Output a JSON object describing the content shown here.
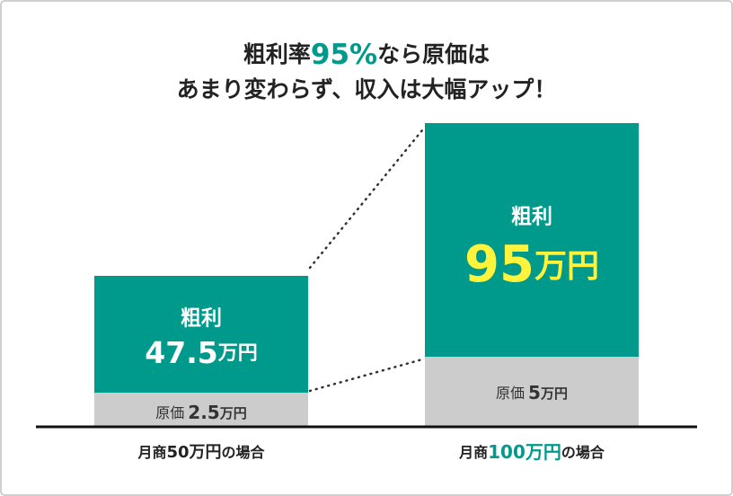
{
  "title": {
    "line1": [
      "粗利率",
      "95%",
      "なら原価は"
    ],
    "line2": "あまり変わらず、収入は大幅アップ！"
  },
  "cases": [
    {
      "label": [
        "月商",
        "50万円",
        "の場合"
      ],
      "profit": {
        "label": "粗利",
        "amount": "47.5",
        "unit": "万円"
      },
      "cost": {
        "label": "原価",
        "amount": "2.5",
        "unit": "万円"
      }
    },
    {
      "label": [
        "月商",
        "100万円",
        "の場合"
      ],
      "profit": {
        "label": "粗利",
        "amount": "95",
        "unit": "万円"
      },
      "cost": {
        "label": "原価",
        "amount": "5",
        "unit": "万円"
      }
    }
  ]
}
